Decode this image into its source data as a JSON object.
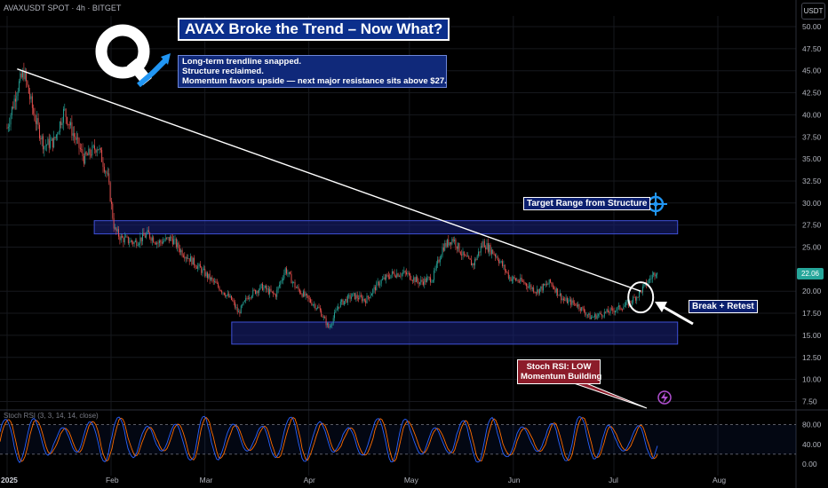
{
  "header": {
    "symbol_line": "AVAXUSDT SPOT · 4h · BITGET",
    "currency_button": "USDT"
  },
  "annotations": {
    "title": "AVAX Broke the Trend – Now What?",
    "description": [
      "Long-term trendline snapped.",
      "Structure reclaimed.",
      "Momentum favors upside — next major resistance sits above $27."
    ],
    "target_label": "Target Range from Structure",
    "break_label": "Break + Retest",
    "rsi_note": [
      "Stoch RSI: LOW",
      "Momentum Building"
    ]
  },
  "colors": {
    "background": "#000000",
    "up": "#26a69a",
    "down": "#ef5350",
    "trendline": "#ffffff",
    "zone_fill": "#1a237e",
    "zone_border": "#3f51d8",
    "rsi_k": "#2962ff",
    "rsi_d": "#ff6d00",
    "accent": "#2196f3"
  },
  "icons": {
    "logo": "q-logo-icon",
    "target": "crosshair-icon",
    "flash": "lightning-icon"
  },
  "chart_data": [
    {
      "type": "candlestick",
      "symbol": "AVAXUSDT",
      "interval": "4h",
      "x_ticks": [
        "2025",
        "Feb",
        "Mar",
        "Apr",
        "May",
        "Jun",
        "Jul",
        "Aug"
      ],
      "y_ticks": [
        "50.00",
        "47.50",
        "45.00",
        "42.50",
        "40.00",
        "37.50",
        "35.00",
        "32.50",
        "30.00",
        "27.50",
        "25.00",
        "20.00",
        "17.50",
        "15.00",
        "12.50",
        "10.00",
        "7.50"
      ],
      "ylim": [
        6.5,
        51
      ],
      "last_price": "22.06",
      "price_path": [
        [
          "2025-01-01",
          38.5
        ],
        [
          "2025-01-04",
          43.0
        ],
        [
          "2025-01-06",
          44.8
        ],
        [
          "2025-01-09",
          40.0
        ],
        [
          "2025-01-12",
          36.5
        ],
        [
          "2025-01-15",
          37.0
        ],
        [
          "2025-01-18",
          40.5
        ],
        [
          "2025-01-20",
          38.5
        ],
        [
          "2025-01-24",
          35.0
        ],
        [
          "2025-01-28",
          36.5
        ],
        [
          "2025-01-31",
          33.0
        ],
        [
          "2025-02-02",
          27.0
        ],
        [
          "2025-02-04",
          26.0
        ],
        [
          "2025-02-08",
          25.5
        ],
        [
          "2025-02-12",
          26.5
        ],
        [
          "2025-02-15",
          25.5
        ],
        [
          "2025-02-19",
          26.0
        ],
        [
          "2025-02-22",
          24.5
        ],
        [
          "2025-02-25",
          23.5
        ],
        [
          "2025-03-01",
          22.0
        ],
        [
          "2025-03-05",
          20.5
        ],
        [
          "2025-03-09",
          19.0
        ],
        [
          "2025-03-11",
          17.5
        ],
        [
          "2025-03-14",
          19.5
        ],
        [
          "2025-03-18",
          20.5
        ],
        [
          "2025-03-22",
          19.5
        ],
        [
          "2025-03-25",
          22.5
        ],
        [
          "2025-03-28",
          20.5
        ],
        [
          "2025-04-01",
          19.0
        ],
        [
          "2025-04-04",
          18.0
        ],
        [
          "2025-04-07",
          15.8
        ],
        [
          "2025-04-10",
          18.5
        ],
        [
          "2025-04-14",
          19.5
        ],
        [
          "2025-04-18",
          19.0
        ],
        [
          "2025-04-22",
          21.0
        ],
        [
          "2025-04-26",
          22.0
        ],
        [
          "2025-04-30",
          22.0
        ],
        [
          "2025-05-04",
          21.0
        ],
        [
          "2025-05-08",
          21.5
        ],
        [
          "2025-05-11",
          25.0
        ],
        [
          "2025-05-14",
          26.0
        ],
        [
          "2025-05-17",
          24.0
        ],
        [
          "2025-05-20",
          23.0
        ],
        [
          "2025-05-23",
          25.5
        ],
        [
          "2025-05-27",
          24.0
        ],
        [
          "2025-05-31",
          21.5
        ],
        [
          "2025-06-04",
          21.0
        ],
        [
          "2025-06-08",
          20.0
        ],
        [
          "2025-06-12",
          21.0
        ],
        [
          "2025-06-16",
          19.0
        ],
        [
          "2025-06-20",
          18.5
        ],
        [
          "2025-06-24",
          17.0
        ],
        [
          "2025-06-28",
          17.5
        ],
        [
          "2025-07-02",
          18.0
        ],
        [
          "2025-07-05",
          18.5
        ],
        [
          "2025-07-08",
          19.5
        ],
        [
          "2025-07-11",
          21.0
        ],
        [
          "2025-07-14",
          22.5
        ]
      ],
      "trendline": [
        [
          "2025-01-04",
          45.2
        ],
        [
          "2025-07-09",
          20.0
        ]
      ],
      "zones": [
        {
          "name": "target-range",
          "from": 26.5,
          "to": 28.0,
          "start": "2025-01-27",
          "end": "2025-07-20"
        },
        {
          "name": "support",
          "from": 14.0,
          "to": 16.5,
          "start": "2025-03-09",
          "end": "2025-07-20"
        }
      ],
      "series": [
        {
          "name": "AVAXUSDT"
        }
      ]
    },
    {
      "type": "line",
      "indicator": "Stoch RSI (3, 3, 14, 14, close)",
      "y_ticks": [
        "80.00",
        "40.00",
        "0.00"
      ],
      "ylim": [
        0,
        100
      ],
      "band": [
        20,
        80
      ],
      "series": [
        {
          "name": "K"
        },
        {
          "name": "D"
        }
      ]
    }
  ]
}
